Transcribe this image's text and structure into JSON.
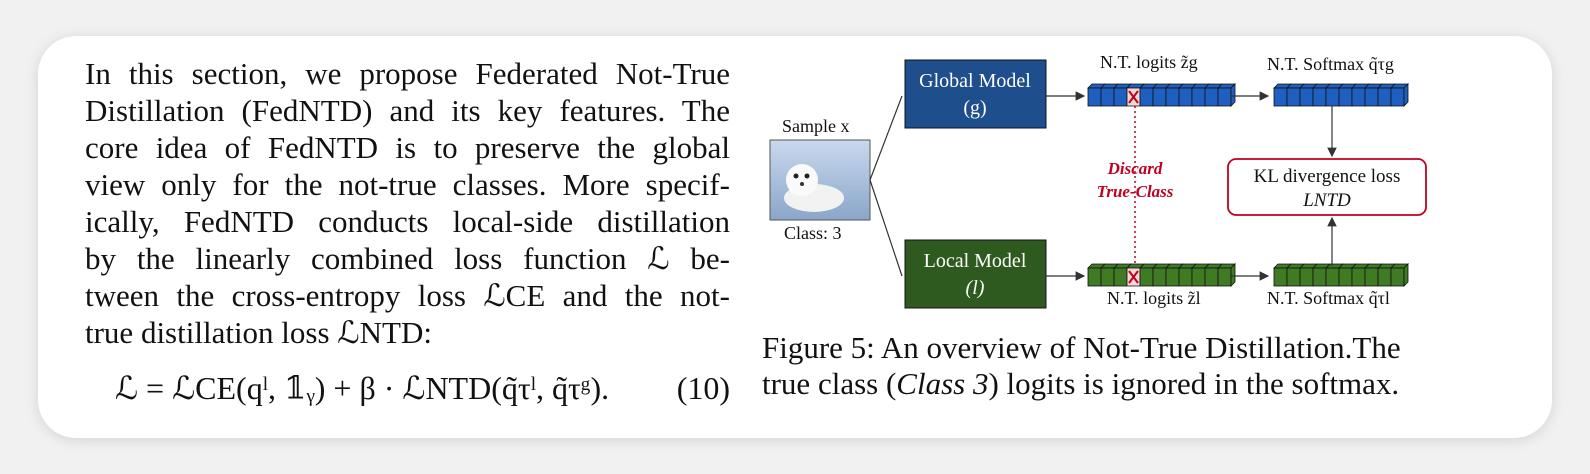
{
  "paragraph": {
    "lines": [
      "In this section, we propose Federated Not-True",
      "Distillation (FedNTD) and its key features. The",
      "core idea of FedNTD is to preserve the global",
      "view only for the not-true classes. More specif-",
      "ically, FedNTD conducts local-side distillation",
      "by the linearly combined loss function ℒ be-",
      "tween the cross-entropy loss ℒCE and the not-",
      "true distillation loss ℒNTD:"
    ]
  },
  "equation": {
    "lhs": "ℒ",
    "equals": "=",
    "ce_term": "ℒCE(qˡ, 𝟙ᵧ)",
    "plus_beta": "+ β ·",
    "ntd_term": "ℒNTD(q̃τˡ, q̃τᵍ).",
    "number": "(10)"
  },
  "figure": {
    "sample_label": "Sample x",
    "class_label": "Class: 3",
    "global_model_line1": "Global Model",
    "global_model_line2": "(g)",
    "local_model_line1": "Local Model",
    "local_model_line2": "(l)",
    "global_logits_label": "N.T. logits z̃g",
    "global_softmax_label": "N.T. Softmax q̃τg",
    "local_logits_label": "N.T. logits z̃l",
    "local_softmax_label": "N.T. Softmax q̃τl",
    "discard_line1": "Discard",
    "discard_line2": "True-Class",
    "kl_line1": "KL divergence loss",
    "kl_line2": "LNTD",
    "colors": {
      "global": "#1f4e8c",
      "global_cell": "#1f5fbf",
      "local": "#2e5a1f",
      "local_cell": "#3f7a25",
      "discard": "#c00020"
    }
  },
  "caption": {
    "line1": "Figure 5:  An overview of Not-True Distillation.The",
    "line2_pre": "true class (",
    "line2_italic": "Class 3",
    "line2_post": ") logits is ignored in the softmax."
  }
}
